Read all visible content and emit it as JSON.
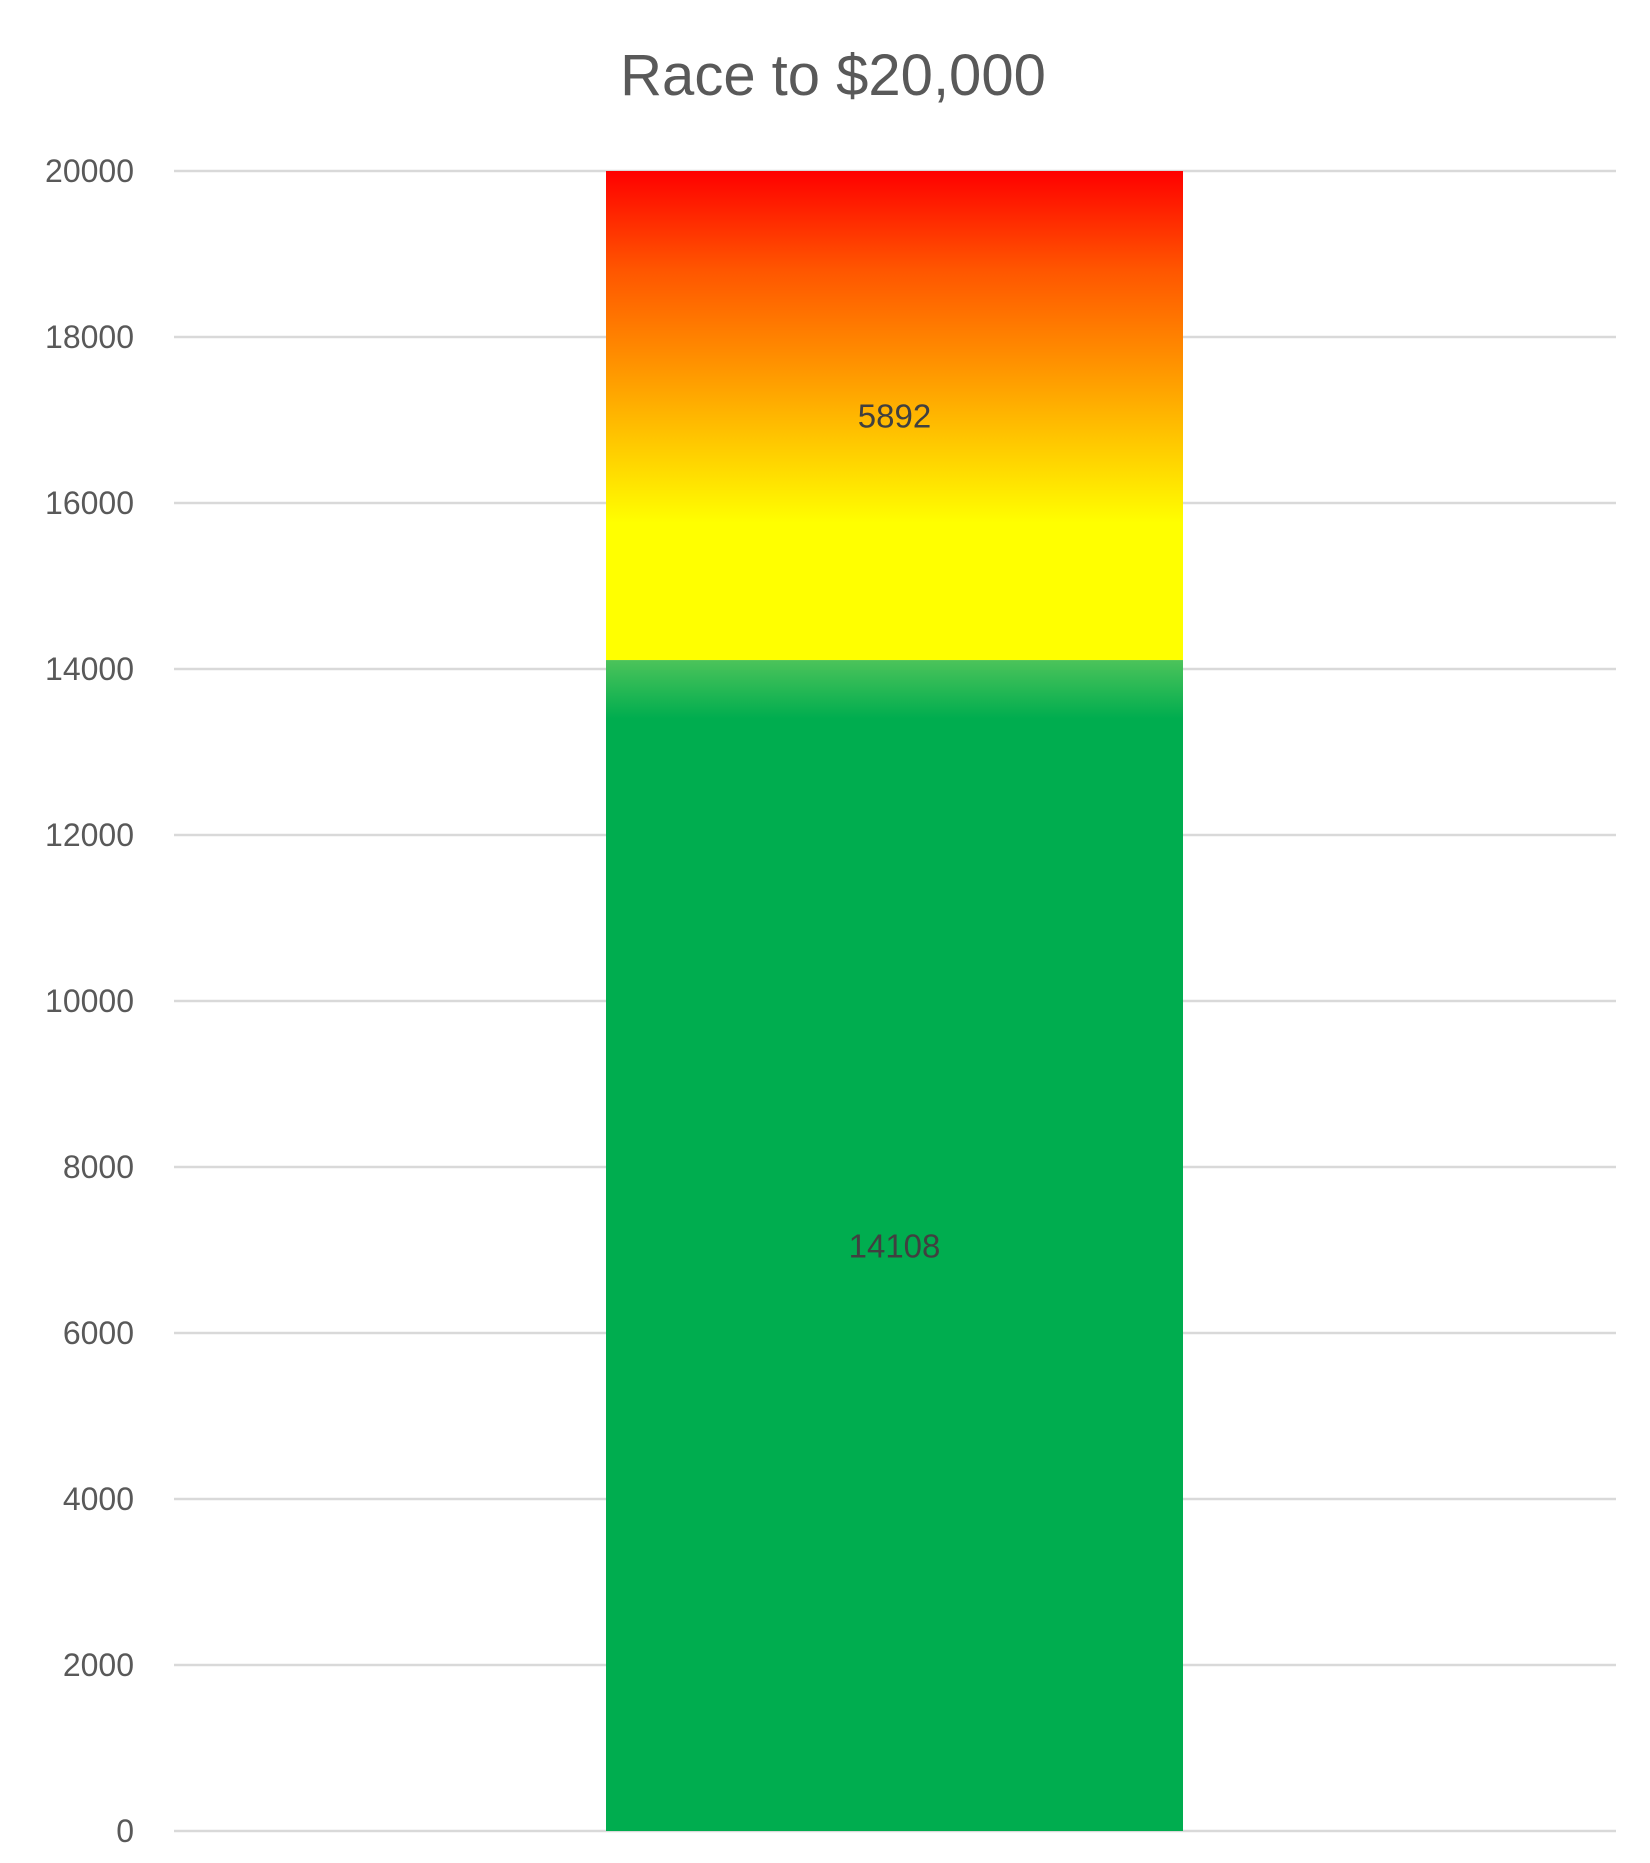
{
  "chart_data": {
    "type": "bar",
    "stacked": true,
    "title": "Race to $20,000",
    "xlabel": "",
    "ylabel": "",
    "ylim": [
      0,
      20000
    ],
    "y_ticks": [
      0,
      2000,
      4000,
      6000,
      8000,
      10000,
      12000,
      14000,
      16000,
      18000,
      20000
    ],
    "categories": [
      ""
    ],
    "grid": true,
    "legend": "none",
    "series": [
      {
        "values": [
          14108
        ],
        "data_label": "14108",
        "color": "#00ad4f"
      },
      {
        "values": [
          5892
        ],
        "data_label": "5892",
        "gradient": [
          "#ffff00",
          "#ffa000",
          "#ff0000"
        ]
      }
    ]
  }
}
